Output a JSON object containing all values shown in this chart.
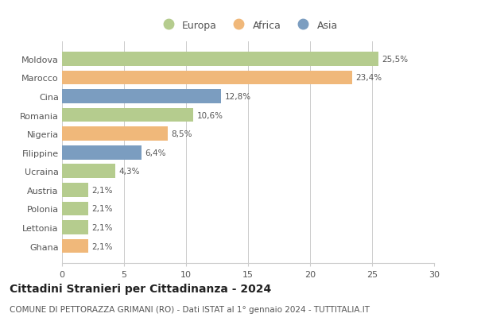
{
  "categories": [
    "Moldova",
    "Marocco",
    "Cina",
    "Romania",
    "Nigeria",
    "Filippine",
    "Ucraina",
    "Austria",
    "Polonia",
    "Lettonia",
    "Ghana"
  ],
  "values": [
    25.5,
    23.4,
    12.8,
    10.6,
    8.5,
    6.4,
    4.3,
    2.1,
    2.1,
    2.1,
    2.1
  ],
  "labels": [
    "25,5%",
    "23,4%",
    "12,8%",
    "10,6%",
    "8,5%",
    "6,4%",
    "4,3%",
    "2,1%",
    "2,1%",
    "2,1%",
    "2,1%"
  ],
  "continents": [
    "Europa",
    "Africa",
    "Asia",
    "Europa",
    "Africa",
    "Asia",
    "Europa",
    "Europa",
    "Europa",
    "Europa",
    "Africa"
  ],
  "colors": {
    "Europa": "#b5cc8e",
    "Africa": "#f0b87a",
    "Asia": "#7b9dc0"
  },
  "xlim": [
    0,
    30
  ],
  "xticks": [
    0,
    5,
    10,
    15,
    20,
    25,
    30
  ],
  "title": "Cittadini Stranieri per Cittadinanza - 2024",
  "subtitle": "COMUNE DI PETTORAZZA GRIMANI (RO) - Dati ISTAT al 1° gennaio 2024 - TUTTITALIA.IT",
  "title_fontsize": 10,
  "subtitle_fontsize": 7.5,
  "background_color": "#ffffff",
  "grid_color": "#cccccc",
  "bar_height": 0.75
}
